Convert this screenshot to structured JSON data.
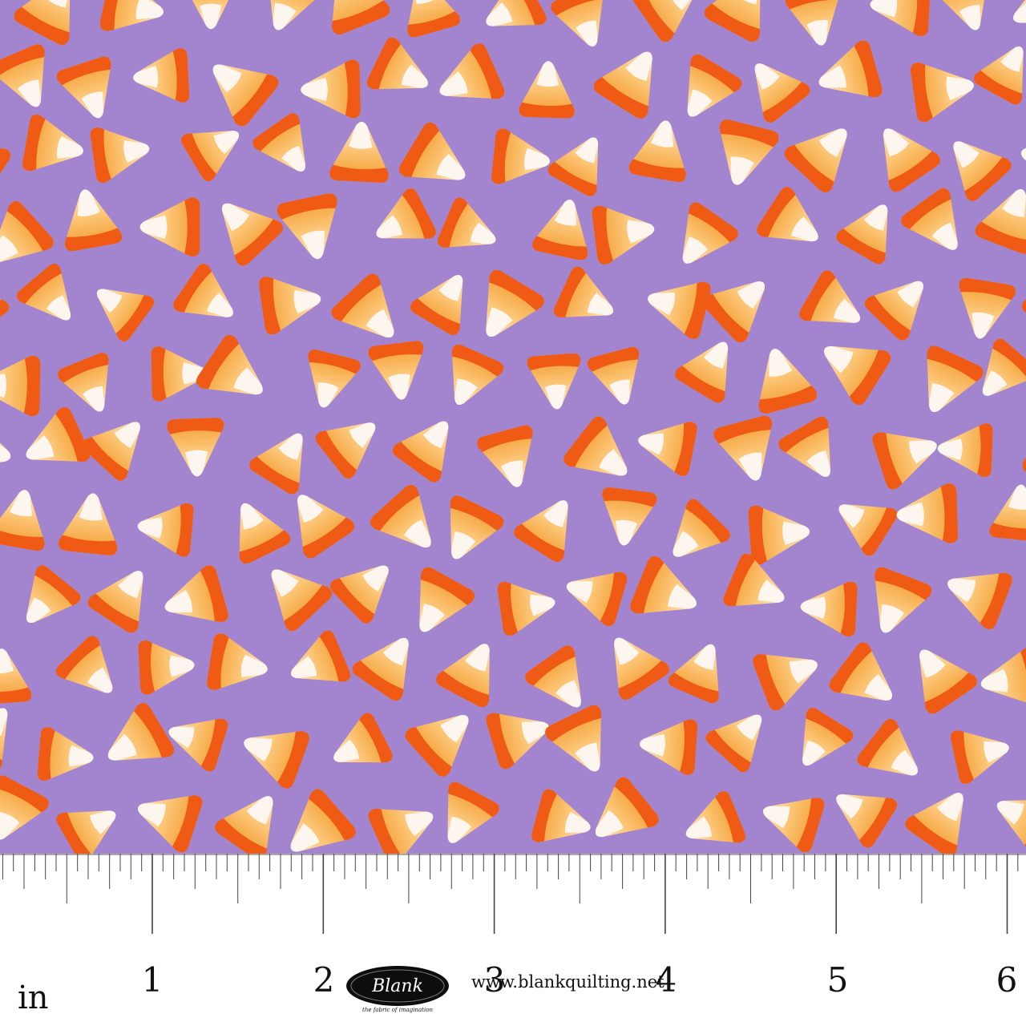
{
  "pattern": {
    "background_color": "#a385cf",
    "candy_colors": {
      "base_dark": "#ef5a14",
      "middle_orange": "#f7a93c",
      "middle_light": "#fcd08a",
      "tip_white": "#fdf6ee"
    }
  },
  "ruler": {
    "unit": "in",
    "numbers": [
      "1",
      "2",
      "3",
      "4",
      "5",
      "6"
    ]
  },
  "brand": {
    "logo_text": "Blank",
    "tagline": "the fabric of imagination",
    "website": "www.blankquilting.net"
  }
}
